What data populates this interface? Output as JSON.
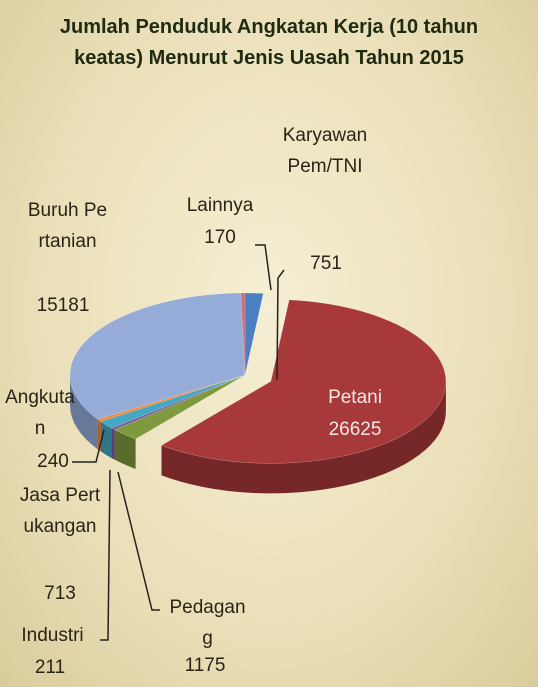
{
  "chart_data": {
    "type": "pie",
    "title": "Jumlah Penduduk Angkatan Kerja (10 tahun keatas) Menurut Jenis Uasah Tahun 2015",
    "categories": [
      "Karyawan Pem/TNI",
      "Petani",
      "Pedagang",
      "Industri",
      "Jasa Pertukangan",
      "Angkutan",
      "Buruh Pertanian",
      "Lainnya"
    ],
    "values": [
      751,
      26625,
      1175,
      211,
      713,
      240,
      15181,
      170
    ],
    "colors": [
      "#4a7fc1",
      "#a8393a",
      "#7f9a3e",
      "#7a5ea0",
      "#46a7c2",
      "#f08a3c",
      "#95acd9",
      "#c96f7a"
    ],
    "exploded": "Petani"
  }
}
